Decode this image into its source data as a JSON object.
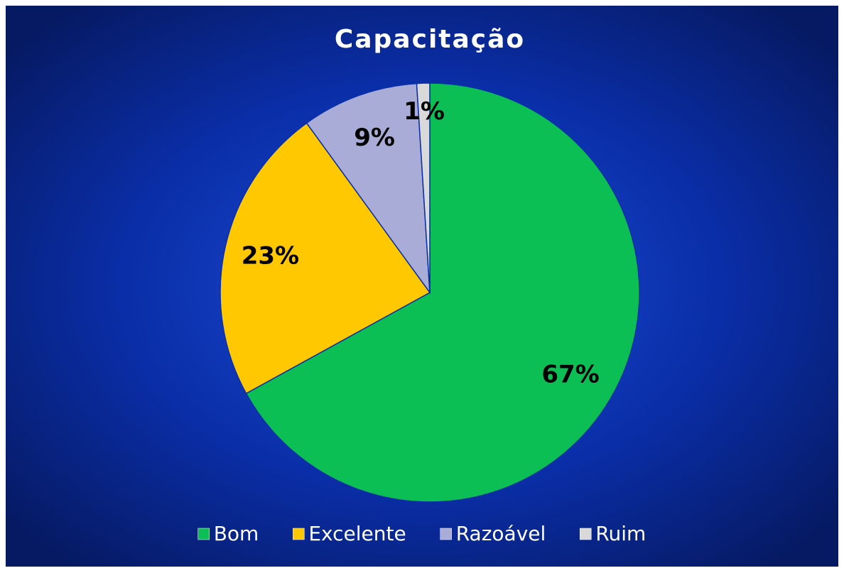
{
  "chart_data": {
    "type": "pie",
    "title": "Capacitação",
    "categories": [
      "Bom",
      "Excelente",
      "Razoável",
      "Ruim"
    ],
    "values": [
      67,
      23,
      9,
      1
    ],
    "value_labels": [
      "67%",
      "23%",
      "9%",
      "1%"
    ],
    "colors": [
      "#0bbf55",
      "#ffc800",
      "#a9acd6",
      "#d9d9d9"
    ],
    "legend": "bottom"
  }
}
